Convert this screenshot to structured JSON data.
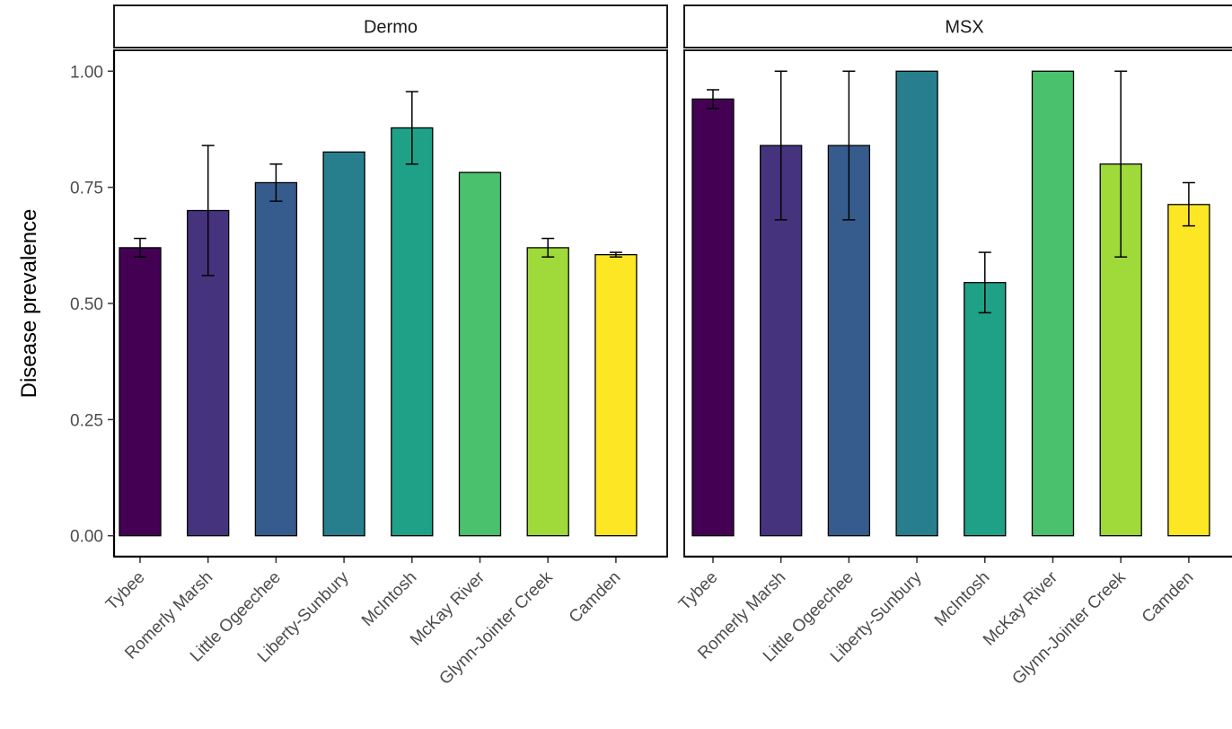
{
  "chart_data": {
    "type": "bar",
    "ylabel": "Disease prevalence",
    "xlabel": "",
    "ylim": [
      -0.045,
      1.045
    ],
    "yticks": [
      "0.00",
      "0.25",
      "0.50",
      "0.75",
      "1.00"
    ],
    "yticks_values": [
      0,
      0.25,
      0.5,
      0.75,
      1.0
    ],
    "categories": [
      "Tybee",
      "Romerly Marsh",
      "Little Ogeechee",
      "Liberty-Sunbury",
      "McIntosh",
      "McKay River",
      "Glynn-Jointer Creek",
      "Camden"
    ],
    "colors": [
      "#440154",
      "#46337E",
      "#365C8D",
      "#277F8E",
      "#1FA187",
      "#4AC16D",
      "#9FDA3A",
      "#FDE725"
    ],
    "grid": false,
    "legend": "none",
    "panels": [
      {
        "title": "Dermo",
        "values": [
          0.62,
          0.7,
          0.76,
          0.826,
          0.878,
          0.782,
          0.62,
          0.605
        ],
        "err_low": [
          0.6,
          0.56,
          0.72,
          null,
          0.8,
          null,
          0.6,
          0.6
        ],
        "err_high": [
          0.64,
          0.84,
          0.8,
          null,
          0.956,
          null,
          0.64,
          0.61
        ]
      },
      {
        "title": "MSX",
        "values": [
          0.94,
          0.84,
          0.84,
          1.0,
          0.545,
          1.0,
          0.8,
          0.713
        ],
        "err_low": [
          0.92,
          0.68,
          0.68,
          null,
          0.48,
          null,
          0.6,
          0.667
        ],
        "err_high": [
          0.96,
          1.0,
          1.0,
          null,
          0.61,
          null,
          1.0,
          0.76
        ]
      }
    ]
  }
}
